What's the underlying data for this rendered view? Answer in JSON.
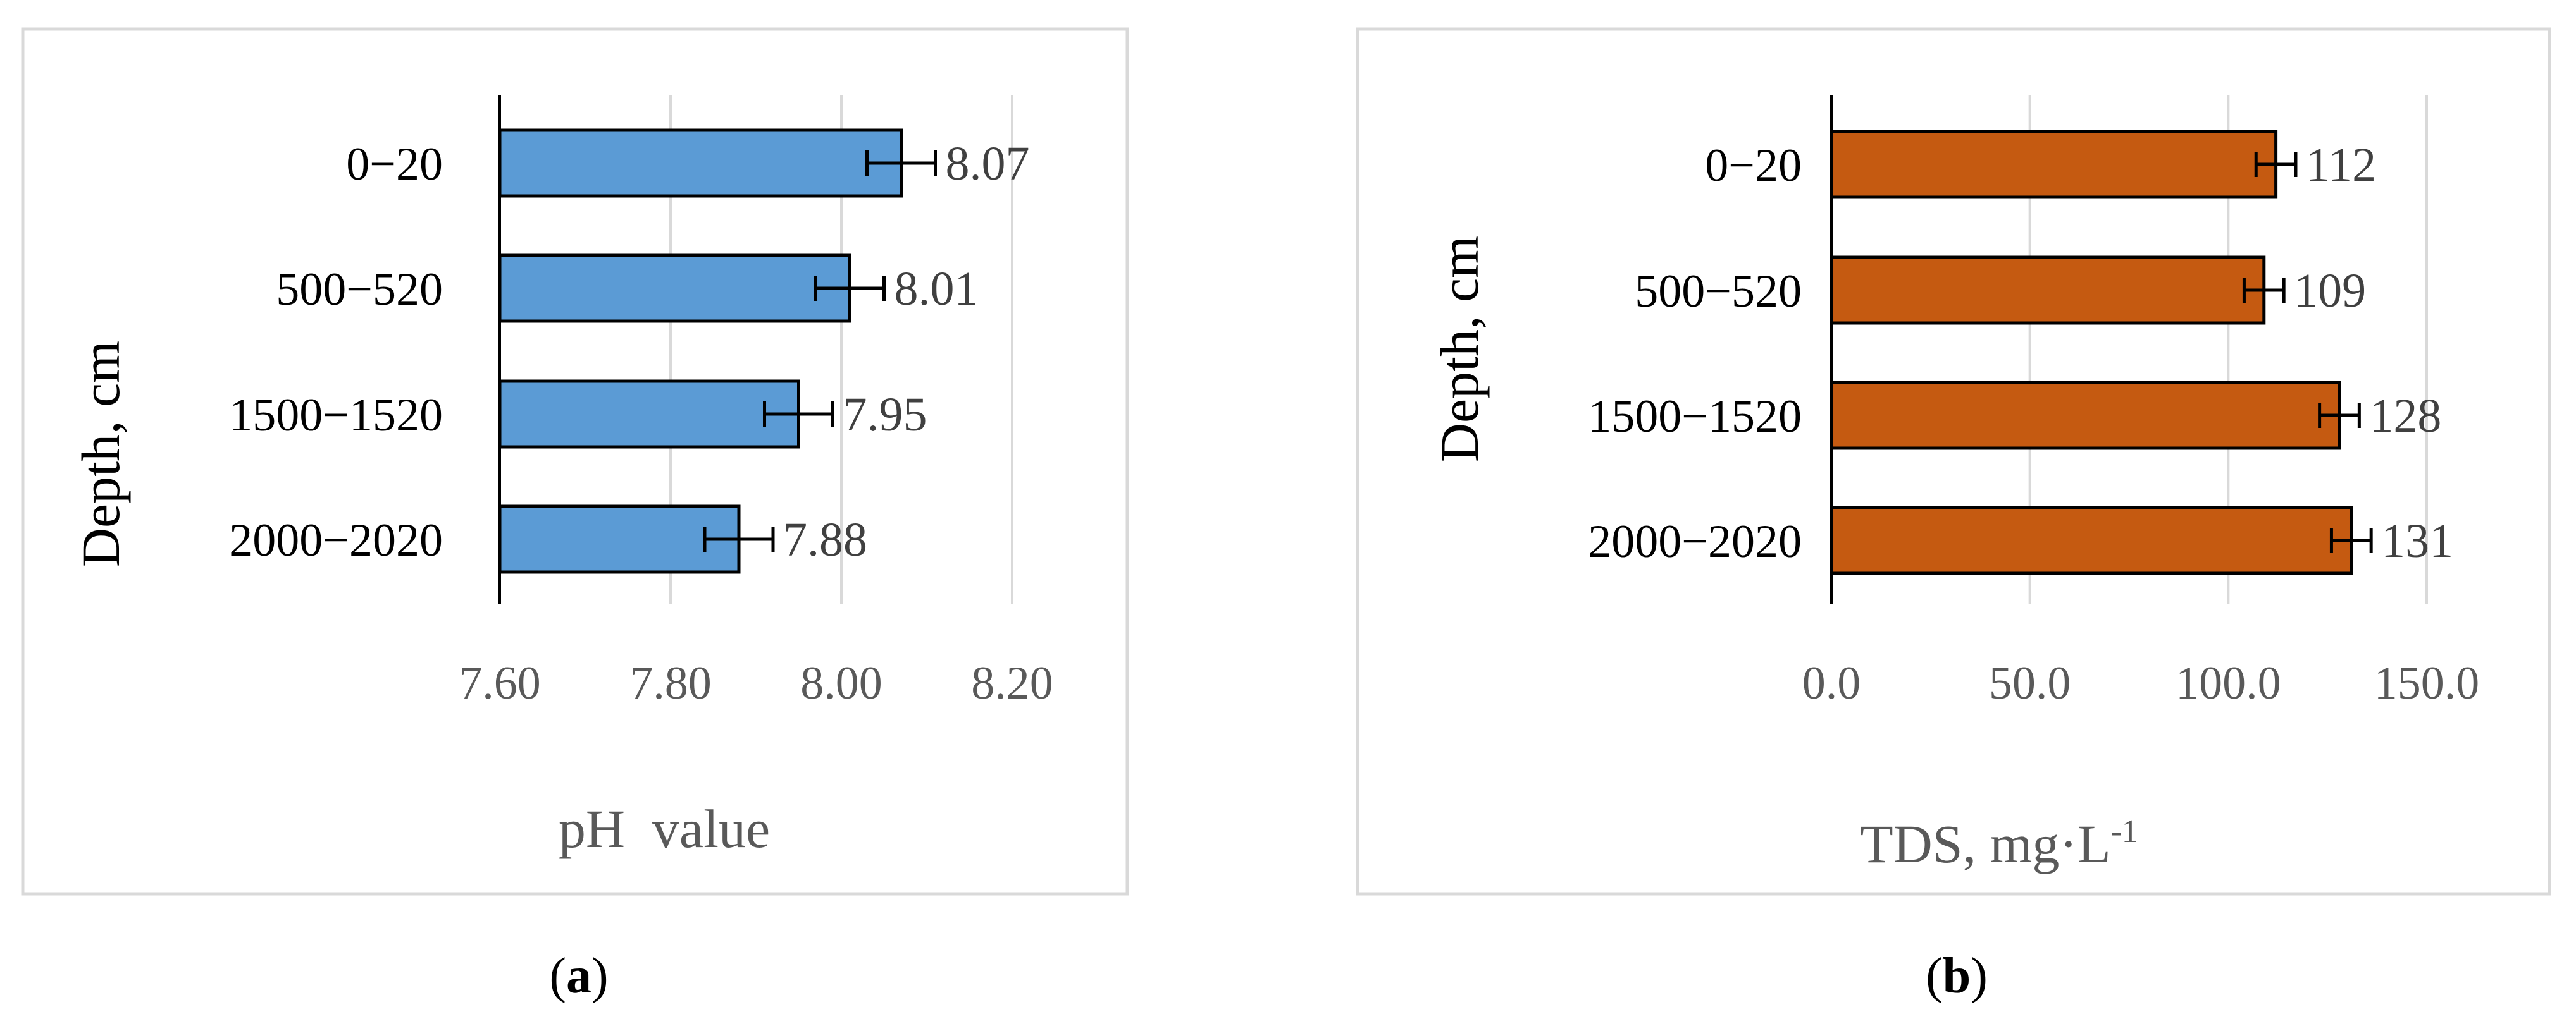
{
  "chart_data": [
    {
      "type": "bar",
      "orientation": "horizontal",
      "panel_label": "a",
      "categories": [
        "0−20",
        "500−520",
        "1500−1520",
        "2000−2020"
      ],
      "values": [
        8.07,
        8.01,
        7.95,
        7.88
      ],
      "value_labels": [
        "8.07",
        "8.01",
        "7.95",
        "7.88"
      ],
      "error": [
        0.04,
        0.04,
        0.04,
        0.04
      ],
      "xlabel": "pH  value",
      "ylabel": "Depth, cm",
      "xlim": [
        7.6,
        8.2
      ],
      "xticks": [
        "7.60",
        "7.80",
        "8.00",
        "8.20"
      ],
      "xtick_values": [
        7.6,
        7.8,
        8.0,
        8.2
      ],
      "grid": true,
      "bar_color": "#5B9BD5"
    },
    {
      "type": "bar",
      "orientation": "horizontal",
      "panel_label": "b",
      "categories": [
        "0−20",
        "500−520",
        "1500−1520",
        "2000−2020"
      ],
      "values": [
        112,
        109,
        128,
        131
      ],
      "value_labels": [
        "112",
        "109",
        "128",
        "131"
      ],
      "error": [
        5,
        5,
        5,
        5
      ],
      "xlabel": "TDS, mg·L",
      "xlabel_sup": "-1",
      "ylabel": "Depth, cm",
      "xlim": [
        0,
        150
      ],
      "xticks": [
        "0.0",
        "50.0",
        "100.0",
        "150.0"
      ],
      "xtick_values": [
        0,
        50,
        100,
        150
      ],
      "grid": true,
      "bar_color": "#C55A11"
    }
  ]
}
